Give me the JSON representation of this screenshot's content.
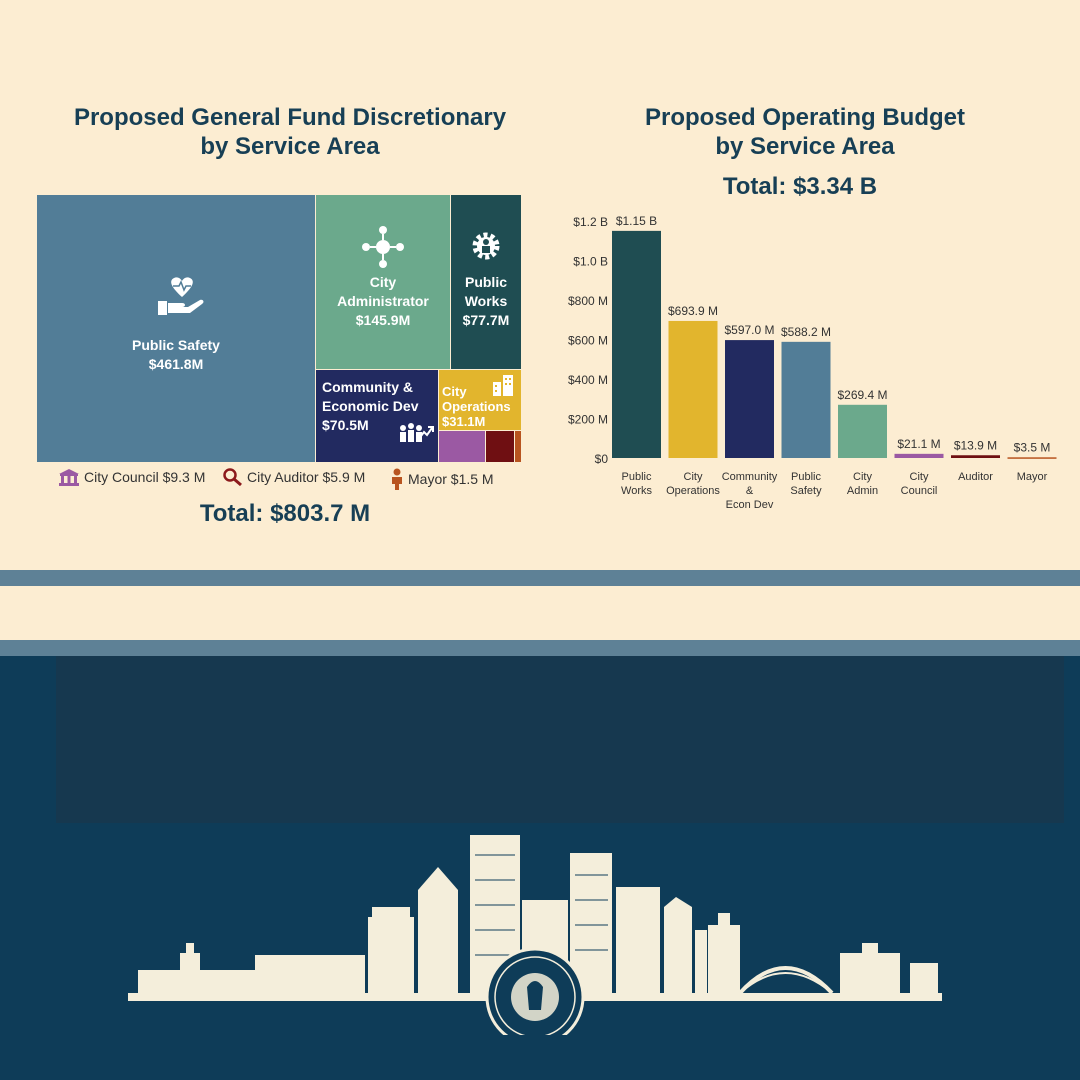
{
  "left": {
    "title_line1": "Proposed General Fund Discretionary",
    "title_line2": "by Service Area",
    "total": "Total:  $803.7 M"
  },
  "right": {
    "title_line1": "Proposed Operating Budget",
    "title_line2": "by Service Area",
    "total": "Total:  $3.34 B"
  },
  "treemap": {
    "public_safety": {
      "name": "Public Safety",
      "value": "$461.8M"
    },
    "city_admin": {
      "name_line1": "City",
      "name_line2": "Administrator",
      "value": "$145.9M"
    },
    "public_works": {
      "name_line1": "Public",
      "name_line2": "Works",
      "value": "$77.7M"
    },
    "community": {
      "name_line1": "Community &",
      "name_line2": "Economic Dev",
      "value": "$70.5M"
    },
    "city_ops": {
      "name_line1": "City",
      "name_line2": "Operations",
      "value": "$31.1M"
    },
    "legend": {
      "council": "City Council $9.3 M",
      "auditor": "City Auditor $5.9 M",
      "mayor": "Mayor $1.5 M"
    }
  },
  "colors": {
    "public_safety": "#527d97",
    "city_admin": "#6ba98c",
    "public_works": "#1f4d52",
    "community": "#222a60",
    "city_ops": "#e2b52d",
    "council": "#9b59a3",
    "auditor": "#6f0f12",
    "mayor": "#b8541f"
  },
  "chart_data": [
    {
      "type": "treemap",
      "title": "Proposed General Fund Discretionary by Service Area",
      "total": "Total:  $803.7 M",
      "items": [
        {
          "name": "Public Safety",
          "value": 461.8
        },
        {
          "name": "City Administrator",
          "value": 145.9
        },
        {
          "name": "Public Works",
          "value": 77.7
        },
        {
          "name": "Community & Economic Dev",
          "value": 70.5
        },
        {
          "name": "City Operations",
          "value": 31.1
        },
        {
          "name": "City Council",
          "value": 9.3
        },
        {
          "name": "City Auditor",
          "value": 5.9
        },
        {
          "name": "Mayor",
          "value": 1.5
        }
      ],
      "unit": "$M"
    },
    {
      "type": "bar",
      "title": "Proposed Operating Budget by Service Area",
      "total": "Total:  $3.34 B",
      "categories": [
        [
          "Public",
          "Works"
        ],
        [
          "City",
          "Operations"
        ],
        [
          "Community",
          "&",
          "Econ Dev"
        ],
        [
          "Public",
          "Safety"
        ],
        [
          "City",
          "Admin"
        ],
        [
          "City",
          "Council"
        ],
        [
          "Auditor"
        ],
        [
          "Mayor"
        ]
      ],
      "values": [
        1150,
        693.9,
        597.0,
        588.2,
        269.4,
        21.1,
        13.9,
        3.5
      ],
      "value_labels": [
        "$1.15 B",
        "$693.9 M",
        "$597.0 M",
        "$588.2 M",
        "$269.4 M",
        "$21.1 M",
        "$13.9 M",
        "$3.5 M"
      ],
      "bar_colors": [
        "#1f4d52",
        "#e2b52d",
        "#222a60",
        "#527d97",
        "#6ba98c",
        "#9b59a3",
        "#6f0f12",
        "#b8541f"
      ],
      "yticks": [
        0,
        200,
        400,
        600,
        800,
        1000,
        1200
      ],
      "ytick_labels": [
        "$0",
        "$200 M",
        "$400 M",
        "$600 M",
        "$800 M",
        "$1.0 B",
        "$1.2 B"
      ],
      "ylim": [
        0,
        1200
      ],
      "unit": "$M"
    }
  ]
}
